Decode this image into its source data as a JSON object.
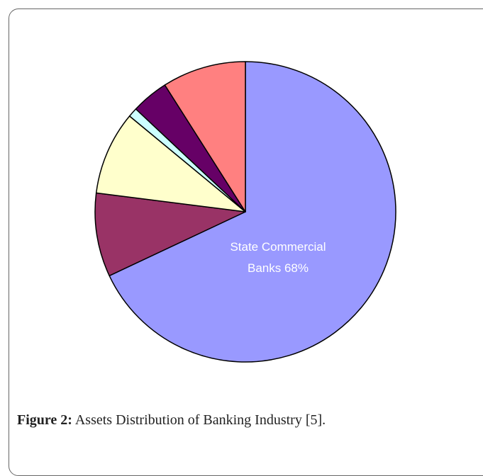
{
  "chart_data": {
    "type": "pie",
    "title": "",
    "slices": [
      {
        "label": "State Commercial Banks",
        "value": 68,
        "display": "68%",
        "color": "#9999ff"
      },
      {
        "label": "",
        "value": 9,
        "color": "#993366"
      },
      {
        "label": "",
        "value": 9,
        "color": "#ffffcc"
      },
      {
        "label": "",
        "value": 1,
        "color": "#ccffff"
      },
      {
        "label": "",
        "value": 4,
        "color": "#660066"
      },
      {
        "label": "",
        "value": 9,
        "color": "#ff8080"
      }
    ],
    "start_angle_deg": 0,
    "direction": "clockwise",
    "inner_label": {
      "line1": "State Commercial",
      "line2": "Banks 68%"
    }
  },
  "caption": {
    "label": "Figure 2:",
    "text": " Assets Distribution of Banking Industry [5]."
  }
}
